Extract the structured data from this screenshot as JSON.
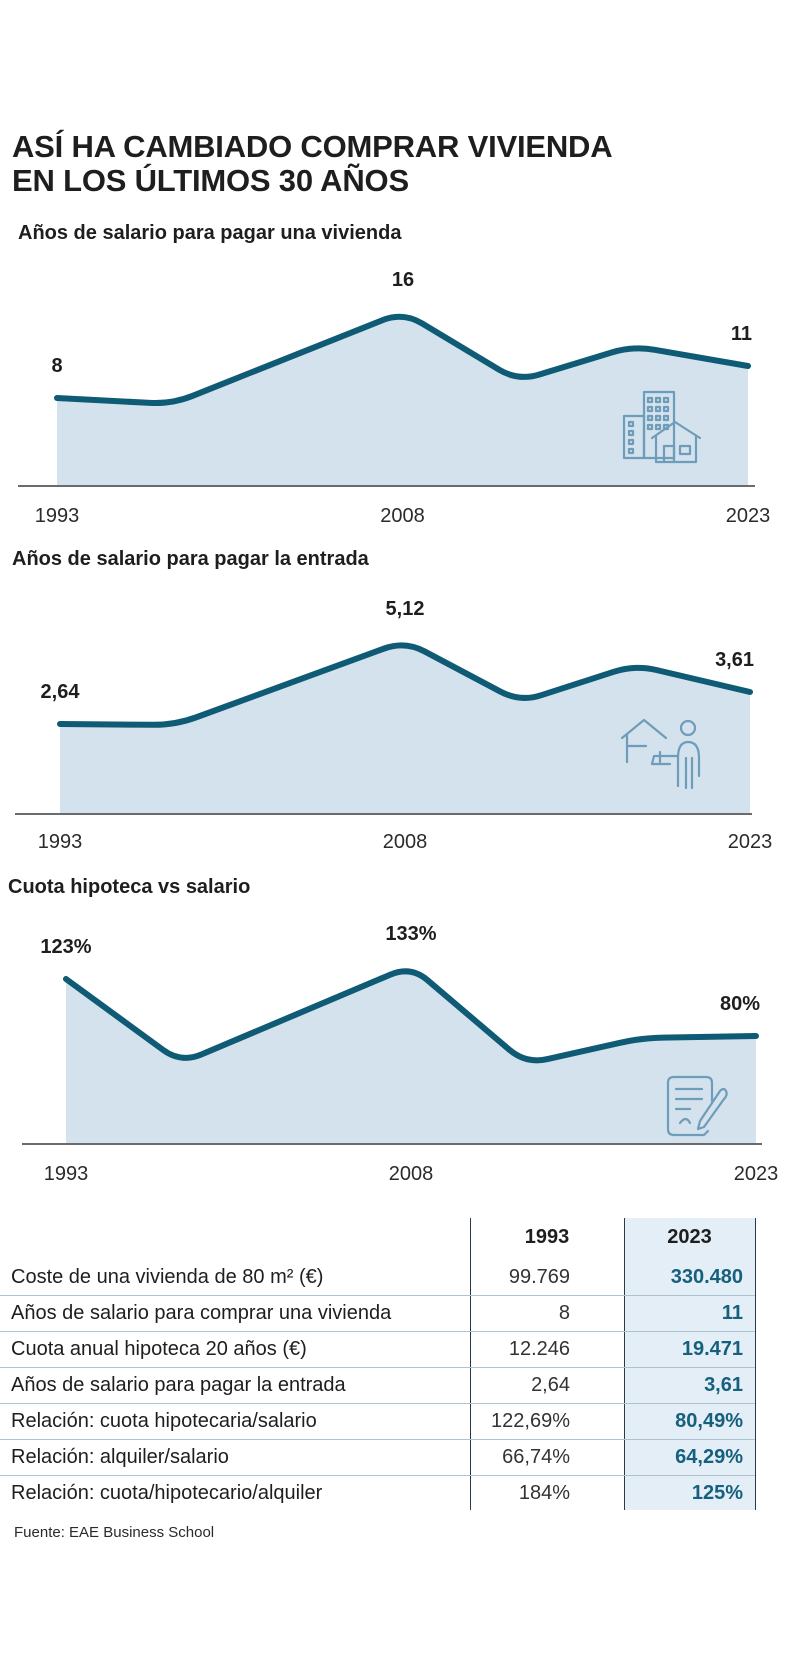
{
  "header": {
    "title_line1": "ASÍ HA CAMBIADO COMPRAR VIVIENDA",
    "title_line2": "EN LOS ÚLTIMOS 30 AÑOS"
  },
  "colors": {
    "line": "#0f5a74",
    "fill": "#d3e2ed",
    "axis": "#3a3a3a",
    "highlight": "#16607d",
    "highlight_bg": "#e3eef6"
  },
  "chart_data": [
    {
      "type": "area",
      "title": "Años de salario para pagar una vivienda",
      "x_ticks": [
        "1993",
        "2008",
        "2023"
      ],
      "x": [
        1993,
        1998,
        2008,
        2013,
        2018,
        2023
      ],
      "values": [
        8,
        7.5,
        16,
        9.6,
        12.8,
        11
      ],
      "data_labels": [
        {
          "x": 1993,
          "text": "8"
        },
        {
          "x": 2008,
          "text": "16"
        },
        {
          "x": 2023,
          "text": "11"
        }
      ],
      "ylim": [
        0,
        18
      ],
      "icon": "buildings-house-icon"
    },
    {
      "type": "area",
      "title": "Años de salario para pagar la entrada",
      "x_ticks": [
        "1993",
        "2008",
        "2023"
      ],
      "x": [
        1993,
        1998,
        2008,
        2013,
        2018,
        2023
      ],
      "values": [
        2.64,
        2.63,
        5.12,
        3.3,
        4.4,
        3.61
      ],
      "data_labels": [
        {
          "x": 1993,
          "text": "2,64"
        },
        {
          "x": 2008,
          "text": "5,12"
        },
        {
          "x": 2023,
          "text": "3,61"
        }
      ],
      "ylim": [
        0,
        5.8
      ],
      "icon": "person-house-icon"
    },
    {
      "type": "area",
      "title": "Cuota hipoteca vs salario",
      "x_ticks": [
        "1993",
        "2008",
        "2023"
      ],
      "x": [
        1993,
        1998,
        2008,
        2013,
        2018,
        2023
      ],
      "values": [
        123,
        60,
        133,
        59,
        79,
        80
      ],
      "data_labels": [
        {
          "x": 1993,
          "text": "123%"
        },
        {
          "x": 2008,
          "text": "133%"
        },
        {
          "x": 2023,
          "text": "80%"
        }
      ],
      "ylim": [
        0,
        150
      ],
      "icon": "document-pen-icon"
    }
  ],
  "table": {
    "columns": [
      "1993",
      "2023"
    ],
    "rows": [
      {
        "label": "Coste de una vivienda de 80 m² (€)",
        "v1993": "99.769",
        "v2023": "330.480"
      },
      {
        "label": "Años de salario para comprar una vivienda",
        "v1993": "8",
        "v2023": "11"
      },
      {
        "label": "Cuota anual hipoteca 20 años (€)",
        "v1993": "12.246",
        "v2023": "19.471"
      },
      {
        "label": "Años de salario para pagar la entrada",
        "v1993": "2,64",
        "v2023": "3,61"
      },
      {
        "label": "Relación: cuota hipotecaria/salario",
        "v1993": "122,69%",
        "v2023": "80,49%"
      },
      {
        "label": "Relación: alquiler/salario",
        "v1993": "66,74%",
        "v2023": "64,29%"
      },
      {
        "label": "Relación: cuota/hipotecario/alquiler",
        "v1993": "184%",
        "v2023": "125%"
      }
    ]
  },
  "footer": {
    "source": "Fuente: EAE Business School"
  }
}
